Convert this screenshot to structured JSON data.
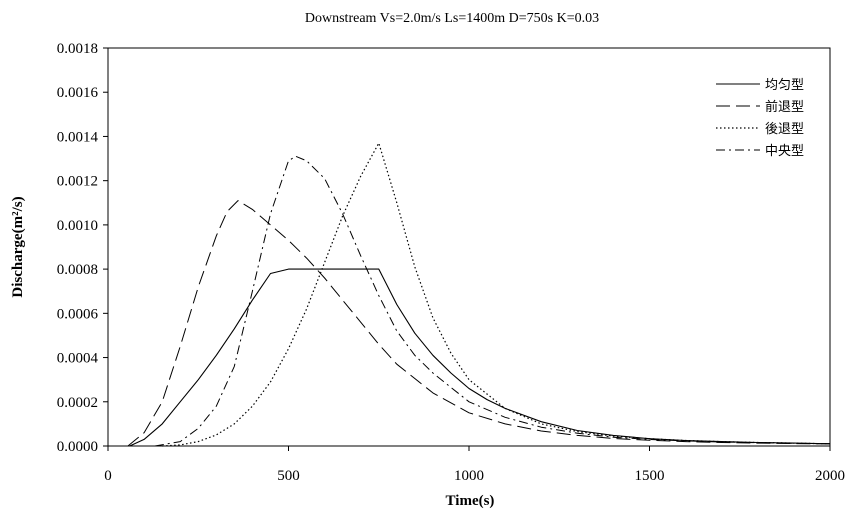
{
  "chart_data": {
    "type": "line",
    "title": "Downstream  Vs=2.0m/s  Ls=1400m  D=750s  K=0.03",
    "xlabel": "Time(s)",
    "ylabel": "Discharge(m²/s)",
    "xlim": [
      0,
      2000
    ],
    "ylim": [
      0,
      0.0018
    ],
    "xticks": [
      "0",
      "500",
      "1000",
      "1500",
      "2000"
    ],
    "yticks": [
      "0.0000",
      "0.0002",
      "0.0004",
      "0.0006",
      "0.0008",
      "0.0010",
      "0.0012",
      "0.0014",
      "0.0016",
      "0.0018"
    ],
    "grid": false,
    "legend": "top-right",
    "series": [
      {
        "name": "均匀型",
        "dash": "solid",
        "x": [
          60,
          100,
          150,
          200,
          250,
          300,
          350,
          400,
          450,
          500,
          550,
          600,
          650,
          700,
          750,
          800,
          850,
          900,
          950,
          1000,
          1050,
          1100,
          1200,
          1300,
          1400,
          1500,
          1600,
          1700,
          1800,
          1900,
          2000
        ],
        "y": [
          0.0,
          3e-05,
          0.0001,
          0.0002,
          0.0003,
          0.00041,
          0.00053,
          0.00066,
          0.00078,
          0.0008,
          0.0008,
          0.0008,
          0.0008,
          0.0008,
          0.0008,
          0.00064,
          0.00051,
          0.00041,
          0.00033,
          0.00026,
          0.00021,
          0.00017,
          0.00011,
          7e-05,
          4.8e-05,
          3.3e-05,
          2.5e-05,
          2e-05,
          1.6e-05,
          1.3e-05,
          1e-05
        ]
      },
      {
        "name": "前退型",
        "dash": "long-dash",
        "x": [
          55,
          100,
          150,
          200,
          250,
          300,
          330,
          360,
          400,
          450,
          500,
          550,
          600,
          650,
          700,
          750,
          800,
          900,
          1000,
          1100,
          1200,
          1300,
          1400,
          1500,
          1600,
          1700,
          1800,
          1900,
          2000
        ],
        "y": [
          0.0,
          6e-05,
          0.0002,
          0.00045,
          0.00072,
          0.00095,
          0.00106,
          0.00111,
          0.00107,
          0.001,
          0.00093,
          0.00085,
          0.00076,
          0.00066,
          0.00056,
          0.00046,
          0.00037,
          0.00024,
          0.00015,
          0.0001,
          6.8e-05,
          4.8e-05,
          3.4e-05,
          2.6e-05,
          2e-05,
          1.6e-05,
          1.3e-05,
          1.1e-05,
          1e-05
        ]
      },
      {
        "name": "後退型",
        "dash": "dotted",
        "x": [
          150,
          200,
          250,
          300,
          350,
          400,
          450,
          500,
          550,
          600,
          650,
          700,
          750,
          800,
          850,
          900,
          950,
          1000,
          1100,
          1200,
          1300,
          1400,
          1500,
          1600,
          1700,
          1800,
          1900,
          2000
        ],
        "y": [
          0.0,
          5e-06,
          2e-05,
          5e-05,
          0.0001,
          0.00018,
          0.00029,
          0.00044,
          0.00062,
          0.00083,
          0.00104,
          0.00122,
          0.00137,
          0.0011,
          0.00081,
          0.00058,
          0.00042,
          0.0003,
          0.00017,
          0.0001,
          6.5e-05,
          4.5e-05,
          3.3e-05,
          2.5e-05,
          2e-05,
          1.6e-05,
          1.3e-05,
          1e-05
        ]
      },
      {
        "name": "中央型",
        "dash": "dash-dot",
        "x": [
          130,
          200,
          250,
          300,
          350,
          400,
          450,
          500,
          520,
          550,
          600,
          650,
          700,
          750,
          800,
          850,
          900,
          1000,
          1100,
          1200,
          1300,
          1400,
          1500,
          1600,
          1700,
          1800,
          1900,
          2000
        ],
        "y": [
          0.0,
          2e-05,
          8e-05,
          0.00018,
          0.00036,
          0.0007,
          0.00105,
          0.00129,
          0.00131,
          0.00129,
          0.00121,
          0.00105,
          0.00086,
          0.00068,
          0.00052,
          0.00041,
          0.00033,
          0.0002,
          0.00013,
          8.5e-05,
          5.8e-05,
          4e-05,
          3e-05,
          2.3e-05,
          1.8e-05,
          1.5e-05,
          1.2e-05,
          1e-05
        ]
      }
    ]
  }
}
